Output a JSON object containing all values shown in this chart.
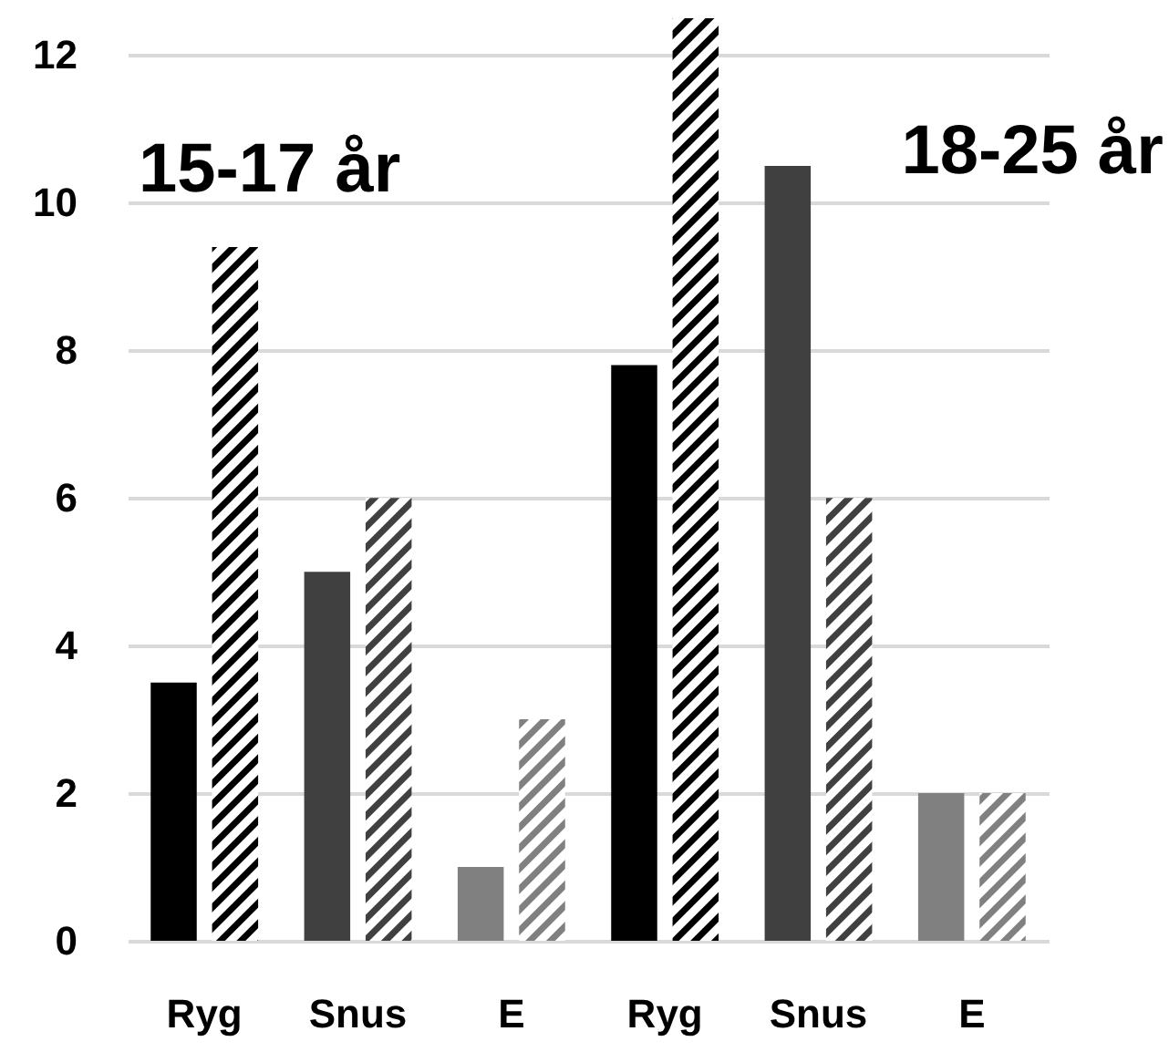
{
  "chart_data": {
    "type": "bar",
    "categories": [
      "Ryg",
      "Snus",
      "E",
      "Ryg",
      "Snus",
      "E"
    ],
    "series": [
      {
        "colors": [
          "#000000",
          "#404040",
          "#808080",
          "#000000",
          "#404040",
          "#808080"
        ],
        "values": [
          3.5,
          5,
          1,
          7.8,
          10.5,
          2
        ]
      },
      {
        "colors": [
          "#000000",
          "#404040",
          "#808080",
          "#000000",
          "#404040",
          "#808080"
        ],
        "values": [
          9.4,
          6,
          3,
          12.5,
          6,
          2
        ]
      }
    ],
    "annotations": [
      "15-17 år",
      "18-25 år"
    ],
    "ylim": [
      0,
      12.5
    ],
    "yticks": [
      0,
      2,
      4,
      6,
      8,
      10,
      12
    ],
    "grid": "y"
  }
}
